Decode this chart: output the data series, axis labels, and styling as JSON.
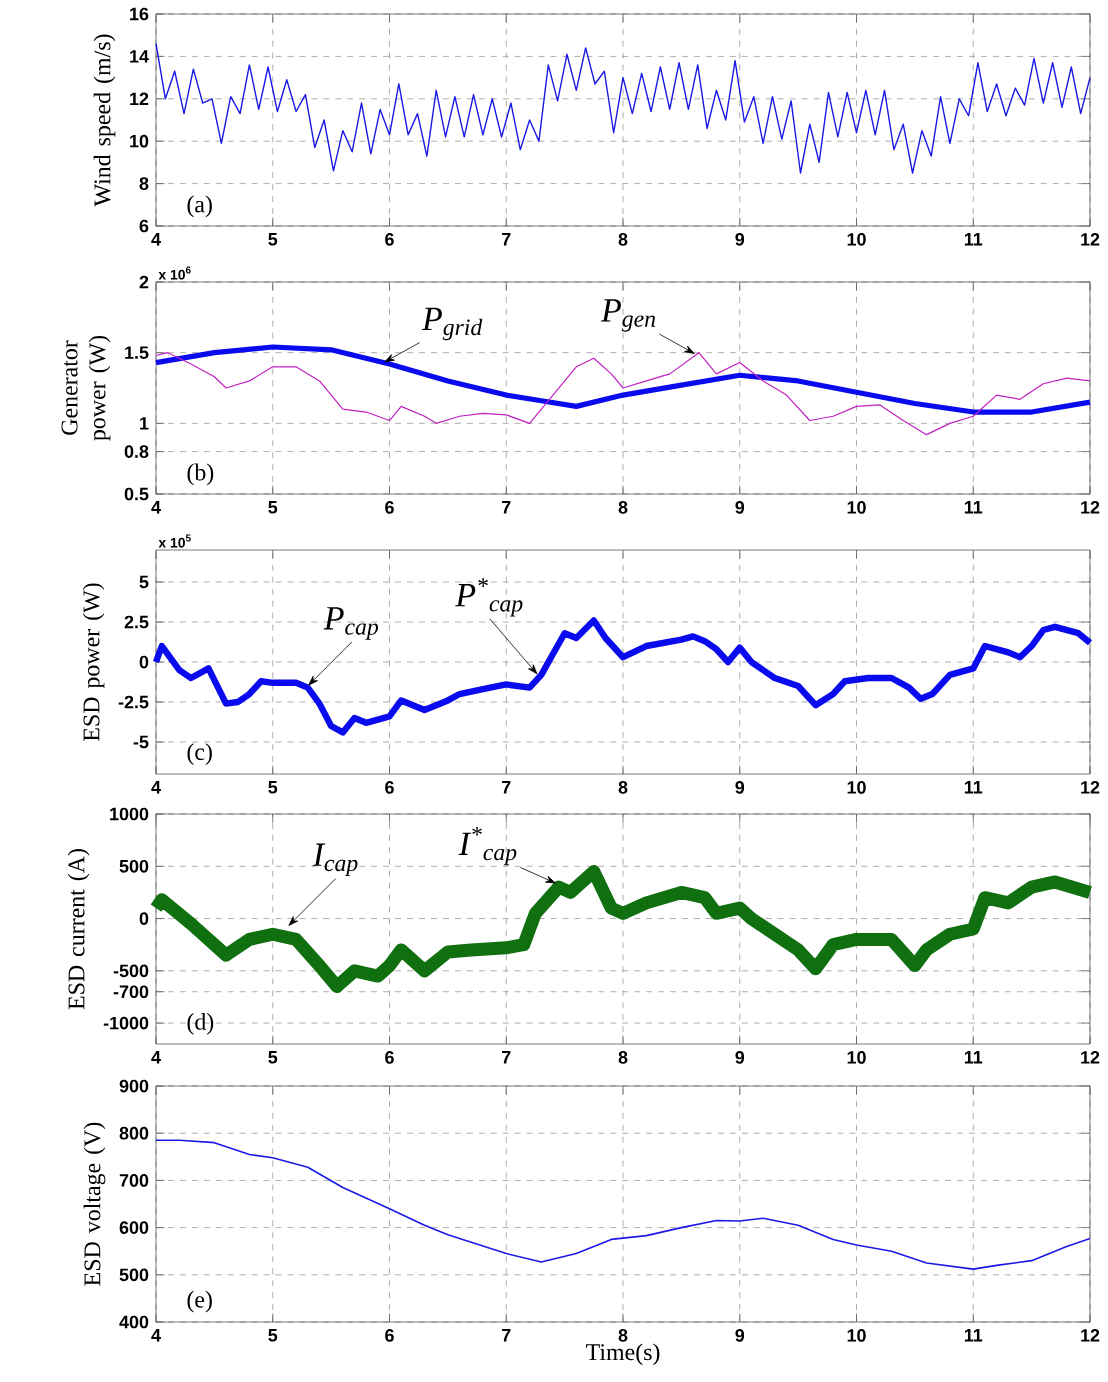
{
  "chart_data": [
    {
      "type": "line",
      "ylabel": "Wind speed (m/s)",
      "xlim": [
        4,
        12
      ],
      "xticks": [
        4,
        5,
        6,
        7,
        8,
        9,
        10,
        11,
        12
      ],
      "ylim": [
        6,
        16
      ],
      "yticks": [
        6,
        8,
        10,
        12,
        14,
        16
      ],
      "grid": true,
      "annotations": [
        "(a)"
      ],
      "series": [
        {
          "color": "#1a1ae6",
          "x": [
            4,
            4.08,
            4.16,
            4.24,
            4.32,
            4.4,
            4.48,
            4.56,
            4.64,
            4.72,
            4.8,
            4.88,
            4.96,
            5.04,
            5.12,
            5.2,
            5.28,
            5.36,
            5.44,
            5.52,
            5.6,
            5.68,
            5.76,
            5.84,
            5.92,
            6,
            6.08,
            6.16,
            6.24,
            6.32,
            6.4,
            6.48,
            6.56,
            6.64,
            6.72,
            6.8,
            6.88,
            6.96,
            7.04,
            7.12,
            7.2,
            7.28,
            7.36,
            7.44,
            7.52,
            7.6,
            7.68,
            7.76,
            7.84,
            7.92,
            8,
            8.08,
            8.16,
            8.24,
            8.32,
            8.4,
            8.48,
            8.56,
            8.64,
            8.72,
            8.8,
            8.88,
            8.96,
            9.04,
            9.12,
            9.2,
            9.28,
            9.36,
            9.44,
            9.52,
            9.6,
            9.68,
            9.76,
            9.84,
            9.92,
            10,
            10.08,
            10.16,
            10.24,
            10.32,
            10.4,
            10.48,
            10.56,
            10.64,
            10.72,
            10.8,
            10.88,
            10.96,
            11.04,
            11.12,
            11.2,
            11.28,
            11.36,
            11.44,
            11.52,
            11.6,
            11.68,
            11.76,
            11.84,
            11.92,
            12
          ],
          "values": [
            14.6,
            12.0,
            13.3,
            11.3,
            13.4,
            11.8,
            12.0,
            9.9,
            12.1,
            11.3,
            13.6,
            11.5,
            13.5,
            11.4,
            12.9,
            11.4,
            12.2,
            9.7,
            11.0,
            8.6,
            10.5,
            9.5,
            11.8,
            9.4,
            11.5,
            10.3,
            12.7,
            10.3,
            11.3,
            9.3,
            12.4,
            10.2,
            12.1,
            10.2,
            12.2,
            10.3,
            12.0,
            10.2,
            11.8,
            9.6,
            11.0,
            10.0,
            13.6,
            11.9,
            14.1,
            12.4,
            14.4,
            12.7,
            13.3,
            10.4,
            13.0,
            11.3,
            13.2,
            11.4,
            13.5,
            11.5,
            13.7,
            11.5,
            13.6,
            10.6,
            12.4,
            11.0,
            13.8,
            10.9,
            12.1,
            9.9,
            12.1,
            10.1,
            11.9,
            8.5,
            10.8,
            9.0,
            12.3,
            10.2,
            12.3,
            10.4,
            12.4,
            10.3,
            12.4,
            9.6,
            10.8,
            8.5,
            10.5,
            9.3,
            12.1,
            9.9,
            12.0,
            11.2,
            13.7,
            11.4,
            12.7,
            11.2,
            12.5,
            11.7,
            13.9,
            11.8,
            13.7,
            11.6,
            13.5,
            11.3,
            13.0
          ]
        }
      ]
    },
    {
      "type": "line",
      "ylabel": "Generator power (W)",
      "xlim": [
        4,
        12
      ],
      "xticks": [
        4,
        5,
        6,
        7,
        8,
        9,
        10,
        11,
        12
      ],
      "ylim": [
        0.5,
        2
      ],
      "yticks": [
        0.5,
        0.8,
        1,
        1.5,
        2
      ],
      "grid": true,
      "annotations": [
        "x 10$^{6}$",
        "(b)",
        {
          "text": "P$_{grid}$",
          "x": 5.95,
          "y": 1.43
        },
        {
          "text": "P$_{gen}$",
          "x": 8.62,
          "y": 1.49
        }
      ],
      "series": [
        {
          "color": "#0a0aee",
          "x": [
            4,
            4.5,
            5,
            5.5,
            6,
            6.5,
            7,
            7.3,
            7.6,
            8,
            8.5,
            9,
            9.5,
            10,
            10.5,
            11,
            11.5,
            12
          ],
          "values": [
            1.43,
            1.5,
            1.54,
            1.52,
            1.42,
            1.3,
            1.2,
            1.16,
            1.12,
            1.2,
            1.27,
            1.34,
            1.3,
            1.22,
            1.14,
            1.08,
            1.08,
            1.15
          ]
        },
        {
          "color": "#c020c0",
          "x": [
            4,
            4.1,
            4.3,
            4.5,
            4.6,
            4.8,
            5,
            5.2,
            5.4,
            5.6,
            5.8,
            6,
            6.1,
            6.3,
            6.4,
            6.6,
            6.8,
            7,
            7.2,
            7.4,
            7.6,
            7.75,
            7.9,
            8,
            8.2,
            8.4,
            8.65,
            8.8,
            9,
            9.2,
            9.4,
            9.6,
            9.8,
            10,
            10.2,
            10.4,
            10.6,
            10.8,
            11,
            11.2,
            11.4,
            11.6,
            11.8,
            12
          ],
          "values": [
            1.48,
            1.5,
            1.42,
            1.33,
            1.25,
            1.3,
            1.4,
            1.4,
            1.3,
            1.1,
            1.08,
            1.02,
            1.12,
            1.05,
            1.0,
            1.05,
            1.07,
            1.06,
            1.0,
            1.2,
            1.4,
            1.46,
            1.35,
            1.25,
            1.3,
            1.35,
            1.5,
            1.35,
            1.43,
            1.3,
            1.2,
            1.02,
            1.05,
            1.12,
            1.13,
            1.02,
            0.92,
            1.0,
            1.05,
            1.2,
            1.17,
            1.28,
            1.32,
            1.3
          ]
        }
      ]
    },
    {
      "type": "line",
      "ylabel": "ESD power (W)",
      "xlim": [
        4,
        12
      ],
      "xticks": [
        4,
        5,
        6,
        7,
        8,
        9,
        10,
        11,
        12
      ],
      "ylim": [
        -7,
        7
      ],
      "yticks": [
        -5,
        -2.5,
        0,
        2.5,
        5
      ],
      "grid": true,
      "annotations": [
        "x 10$^{5}$",
        "(c)",
        {
          "text": "P$_{cap}$",
          "x": 5.3,
          "y": -1.5
        },
        {
          "text": "P$^{*}$$_{cap}$",
          "x": 7.27,
          "y": -0.8
        }
      ],
      "series": [
        {
          "color": "#0a0aee",
          "x": [
            4,
            4.05,
            4.2,
            4.3,
            4.45,
            4.6,
            4.7,
            4.8,
            4.9,
            5,
            5.2,
            5.3,
            5.4,
            5.5,
            5.6,
            5.7,
            5.8,
            6,
            6.1,
            6.3,
            6.5,
            6.6,
            6.8,
            7,
            7.2,
            7.3,
            7.4,
            7.5,
            7.6,
            7.75,
            7.85,
            8,
            8.2,
            8.5,
            8.6,
            8.7,
            8.8,
            8.9,
            9,
            9.1,
            9.3,
            9.5,
            9.65,
            9.8,
            9.9,
            10.1,
            10.3,
            10.45,
            10.55,
            10.65,
            10.8,
            11,
            11.1,
            11.3,
            11.4,
            11.5,
            11.6,
            11.7,
            11.9,
            12
          ],
          "values": [
            0,
            1,
            -0.5,
            -1,
            -0.4,
            -2.6,
            -2.5,
            -2,
            -1.2,
            -1.3,
            -1.3,
            -1.6,
            -2.6,
            -4,
            -4.4,
            -3.5,
            -3.8,
            -3.4,
            -2.4,
            -3,
            -2.4,
            -2,
            -1.7,
            -1.4,
            -1.6,
            -0.8,
            0.5,
            1.8,
            1.5,
            2.6,
            1.5,
            0.3,
            1,
            1.4,
            1.6,
            1.3,
            0.8,
            0,
            0.9,
            0,
            -1,
            -1.5,
            -2.7,
            -2,
            -1.2,
            -1,
            -1,
            -1.6,
            -2.3,
            -2,
            -0.8,
            -0.4,
            1,
            0.6,
            0.3,
            1,
            2,
            2.2,
            1.8,
            1.2
          ]
        }
      ]
    },
    {
      "type": "line",
      "ylabel": "ESD current (A)",
      "xlim": [
        4,
        12
      ],
      "xticks": [
        4,
        5,
        6,
        7,
        8,
        9,
        10,
        11,
        12
      ],
      "ylim": [
        -1200,
        1000
      ],
      "yticks": [
        -1000,
        -700,
        -500,
        0,
        500,
        1000
      ],
      "grid": true,
      "annotations": [
        "(d)",
        {
          "text": "I$_{cap}$",
          "x": 5.13,
          "y": -75
        },
        {
          "text": "I$^{*}$$_{cap}$",
          "x": 7.43,
          "y": 335
        }
      ],
      "series": [
        {
          "color": "#107010",
          "x": [
            4,
            4.05,
            4.3,
            4.6,
            4.8,
            5,
            5.2,
            5.4,
            5.55,
            5.7,
            5.9,
            6,
            6.1,
            6.3,
            6.5,
            6.7,
            7,
            7.15,
            7.25,
            7.45,
            7.55,
            7.75,
            7.9,
            8,
            8.2,
            8.5,
            8.7,
            8.8,
            9,
            9.1,
            9.3,
            9.5,
            9.65,
            9.8,
            10,
            10.3,
            10.5,
            10.6,
            10.8,
            11,
            11.1,
            11.3,
            11.5,
            11.7,
            12
          ],
          "values": [
            100,
            180,
            -50,
            -350,
            -200,
            -150,
            -200,
            -450,
            -650,
            -500,
            -550,
            -450,
            -300,
            -500,
            -320,
            -300,
            -280,
            -250,
            50,
            300,
            250,
            450,
            100,
            50,
            150,
            250,
            200,
            50,
            100,
            0,
            -150,
            -300,
            -480,
            -250,
            -200,
            -200,
            -450,
            -300,
            -150,
            -100,
            200,
            150,
            300,
            350,
            250
          ]
        }
      ]
    },
    {
      "type": "line",
      "ylabel": "ESD voltage (V)",
      "xlabel": "Time(s)",
      "xlim": [
        4,
        12
      ],
      "xticks": [
        4,
        5,
        6,
        7,
        8,
        9,
        10,
        11,
        12
      ],
      "ylim": [
        400,
        900
      ],
      "yticks": [
        400,
        500,
        600,
        700,
        800,
        900
      ],
      "grid": true,
      "annotations": [
        "(e)"
      ],
      "series": [
        {
          "color": "#1a1ae6",
          "x": [
            4,
            4.2,
            4.5,
            4.8,
            5,
            5.3,
            5.6,
            6,
            6.3,
            6.5,
            7,
            7.3,
            7.6,
            7.9,
            8.2,
            8.5,
            8.8,
            9,
            9.2,
            9.5,
            9.8,
            10,
            10.3,
            10.6,
            11,
            11.2,
            11.5,
            11.8,
            12
          ],
          "values": [
            785,
            785,
            780,
            755,
            748,
            728,
            685,
            640,
            605,
            585,
            545,
            527,
            545,
            575,
            583,
            600,
            615,
            614,
            620,
            605,
            575,
            563,
            550,
            525,
            512,
            520,
            530,
            560,
            577
          ]
        }
      ]
    }
  ]
}
